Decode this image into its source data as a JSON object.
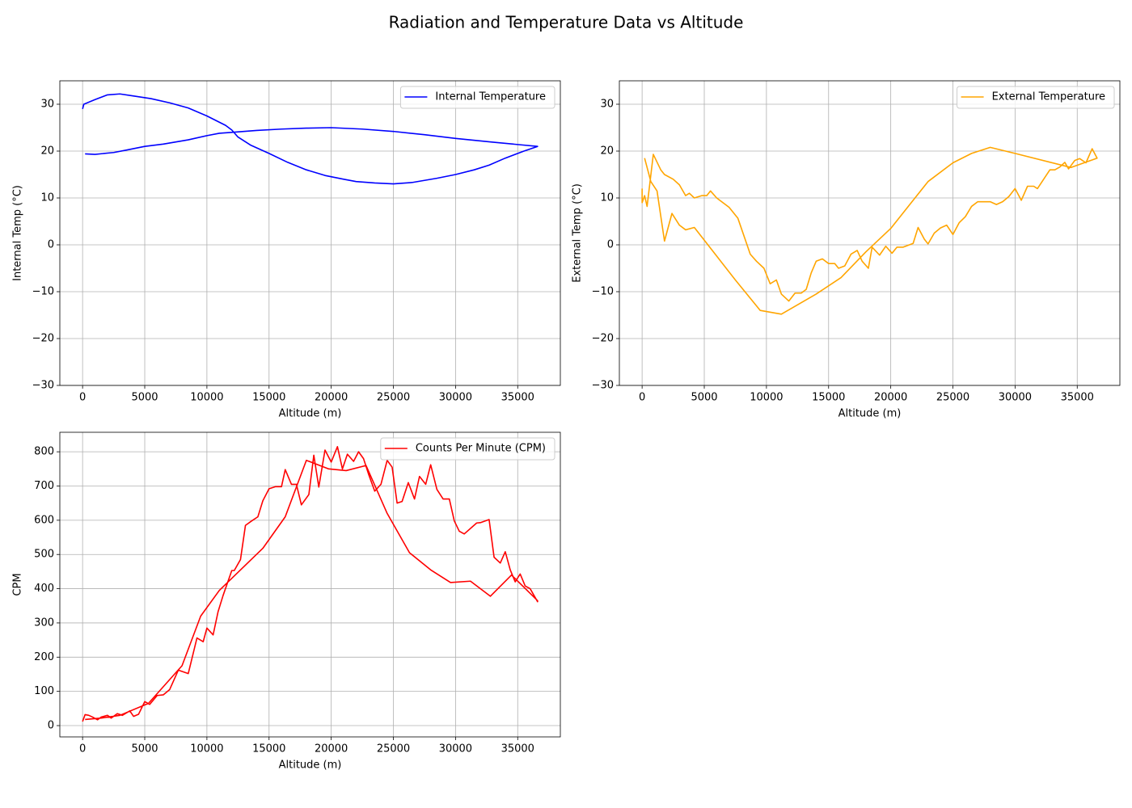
{
  "title": "Radiation and Temperature Data vs Altitude",
  "chart_data": [
    {
      "type": "line",
      "xlabel": "Altitude (m)",
      "ylabel": "Internal Temp (°C)",
      "xlim": [
        -1830,
        38430
      ],
      "ylim": [
        -30,
        35
      ],
      "xticks": [
        0,
        5000,
        10000,
        15000,
        20000,
        25000,
        30000,
        35000
      ],
      "yticks": [
        {
          "value": -30,
          "label": "−30"
        },
        {
          "value": -20,
          "label": "−20"
        },
        {
          "value": -10,
          "label": "−10"
        },
        0,
        10,
        20,
        30
      ],
      "grid": true,
      "legend": "upper right",
      "x": [
        0,
        100,
        1000,
        2000,
        3000,
        4000,
        5500,
        7000,
        8500,
        10000,
        11500,
        12000,
        12500,
        13500,
        15000,
        16500,
        18000,
        19500,
        21000,
        22000,
        23500,
        25000,
        26500,
        28500,
        30000,
        31500,
        32700,
        34000,
        35500,
        36600,
        35000,
        33000,
        30000,
        27500,
        25000,
        22500,
        20000,
        18000,
        16000,
        14000,
        12000,
        11000,
        10000,
        8500,
        6500,
        5000,
        3500,
        2500,
        1000,
        200
      ],
      "series": [
        {
          "name": "Internal Temperature",
          "color": "#0000ff",
          "values": [
            29,
            30,
            31,
            32,
            32.2,
            31.8,
            31.2,
            30.3,
            29.2,
            27.5,
            25.5,
            24.5,
            23,
            21.3,
            19.5,
            17.6,
            16,
            14.8,
            14,
            13.5,
            13.2,
            13,
            13.3,
            14.2,
            15,
            16,
            17,
            18.5,
            20,
            21,
            21.4,
            21.9,
            22.7,
            23.5,
            24.2,
            24.7,
            25,
            24.9,
            24.7,
            24.4,
            24,
            23.8,
            23.3,
            22.4,
            21.5,
            21,
            20.2,
            19.7,
            19.3,
            19.4
          ]
        }
      ]
    },
    {
      "type": "line",
      "xlabel": "Altitude (m)",
      "ylabel": "External Temp (°C)",
      "xlim": [
        -1830,
        38430
      ],
      "ylim": [
        -30,
        35
      ],
      "xticks": [
        0,
        5000,
        10000,
        15000,
        20000,
        25000,
        30000,
        35000
      ],
      "yticks": [
        {
          "value": -30,
          "label": "−30"
        },
        {
          "value": -20,
          "label": "−20"
        },
        {
          "value": -10,
          "label": "−10"
        },
        0,
        10,
        20,
        30
      ],
      "grid": true,
      "legend": "upper right",
      "x": [
        0,
        0,
        200,
        400,
        900,
        1500,
        1800,
        2500,
        3000,
        3500,
        3800,
        4200,
        4800,
        5200,
        5500,
        6000,
        7000,
        7700,
        8700,
        9200,
        9800,
        10300,
        10800,
        11200,
        11800,
        12300,
        12800,
        13200,
        13600,
        14000,
        14500,
        15000,
        15500,
        15800,
        16300,
        16800,
        17300,
        17700,
        18200,
        18500,
        19100,
        19600,
        20100,
        20500,
        21000,
        21800,
        22200,
        22700,
        23000,
        23500,
        24000,
        24500,
        25000,
        25500,
        26000,
        26500,
        27000,
        28000,
        28500,
        29000,
        29500,
        30000,
        30500,
        31000,
        31500,
        31800,
        32800,
        33200,
        33600,
        34000,
        34300,
        34800,
        35200,
        35700,
        36200,
        36600,
        34500,
        30000,
        28000,
        26500,
        25000,
        23000,
        20000,
        18000,
        16000,
        14000,
        11200,
        9500,
        7500,
        5000,
        4200,
        3500,
        3000,
        2400,
        1800,
        1200,
        700,
        200
      ],
      "series": [
        {
          "name": "External Temperature",
          "color": "#ffa500",
          "values": [
            12,
            9,
            10.5,
            8.2,
            19.3,
            16,
            15,
            14,
            12.8,
            10.5,
            11,
            10,
            10.5,
            10.5,
            11.5,
            10,
            8,
            5.7,
            -2,
            -3.5,
            -5,
            -8.3,
            -7.5,
            -10.5,
            -12,
            -10.3,
            -10.3,
            -9.5,
            -6,
            -3.5,
            -3,
            -4,
            -4,
            -5,
            -4.5,
            -2,
            -1.2,
            -3.5,
            -5,
            -0.5,
            -2.2,
            -0.3,
            -1.8,
            -0.5,
            -0.5,
            0.3,
            3.7,
            1.2,
            0.2,
            2.5,
            3.6,
            4.2,
            2.2,
            4.7,
            6,
            8.2,
            9.2,
            9.2,
            8.6,
            9.2,
            10.3,
            12,
            9.5,
            12.5,
            12.5,
            12,
            16,
            16,
            16.6,
            17.6,
            16.2,
            18,
            18.4,
            17.5,
            20.5,
            18.5,
            16.5,
            19.5,
            20.8,
            19.5,
            17.5,
            13.5,
            3.5,
            -1.5,
            -7,
            -10.5,
            -14.8,
            -14,
            -7.5,
            1,
            3.7,
            3.2,
            4.2,
            6.7,
            0.8,
            11.5,
            13.5,
            18.5
          ]
        }
      ]
    },
    {
      "type": "line",
      "xlabel": "Altitude (m)",
      "ylabel": "CPM",
      "xlim": [
        -1830,
        38430
      ],
      "ylim": [
        -33,
        857
      ],
      "xticks": [
        0,
        5000,
        10000,
        15000,
        20000,
        25000,
        30000,
        35000
      ],
      "yticks": [
        0,
        100,
        200,
        300,
        400,
        500,
        600,
        700,
        800
      ],
      "grid": true,
      "legend": "upper right",
      "x": [
        0,
        200,
        500,
        800,
        1200,
        1500,
        2000,
        2300,
        2800,
        3200,
        3800,
        4100,
        4500,
        5000,
        5400,
        6000,
        6500,
        7000,
        7700,
        8500,
        9200,
        9700,
        10000,
        10500,
        10900,
        11300,
        12000,
        12200,
        12700,
        13100,
        13600,
        14100,
        14500,
        15000,
        15500,
        16000,
        16300,
        16800,
        17200,
        17600,
        18200,
        18600,
        19000,
        19500,
        20000,
        20500,
        20900,
        21300,
        21800,
        22200,
        22600,
        23000,
        23500,
        24000,
        24500,
        24900,
        25300,
        25700,
        26200,
        26700,
        27100,
        27600,
        28000,
        28500,
        29000,
        29500,
        29900,
        30300,
        30700,
        31700,
        32000,
        32700,
        33100,
        33600,
        34000,
        34400,
        34800,
        35200,
        35600,
        36000,
        36600,
        36600,
        34500,
        32800,
        31200,
        29600,
        28000,
        26300,
        24500,
        22800,
        21200,
        19800,
        18000,
        16300,
        14500,
        11000,
        9500,
        8000,
        5300,
        3000,
        1500,
        200
      ],
      "series": [
        {
          "name": "Counts Per Minute (CPM)",
          "color": "#ff0000",
          "values": [
            12,
            32,
            30,
            25,
            17,
            25,
            30,
            22,
            35,
            30,
            43,
            27,
            33,
            70,
            62,
            88,
            90,
            105,
            162,
            152,
            256,
            245,
            285,
            265,
            333,
            380,
            453,
            453,
            485,
            585,
            598,
            610,
            657,
            692,
            698,
            698,
            748,
            705,
            705,
            645,
            675,
            790,
            697,
            805,
            770,
            815,
            750,
            793,
            772,
            800,
            780,
            735,
            685,
            705,
            775,
            755,
            650,
            655,
            710,
            662,
            728,
            705,
            762,
            690,
            662,
            662,
            598,
            568,
            560,
            592,
            593,
            602,
            492,
            475,
            508,
            455,
            420,
            443,
            408,
            400,
            362,
            365,
            440,
            378,
            422,
            418,
            455,
            505,
            620,
            760,
            745,
            750,
            775,
            610,
            518,
            395,
            320,
            175,
            65,
            30,
            22,
            18
          ]
        }
      ]
    }
  ]
}
